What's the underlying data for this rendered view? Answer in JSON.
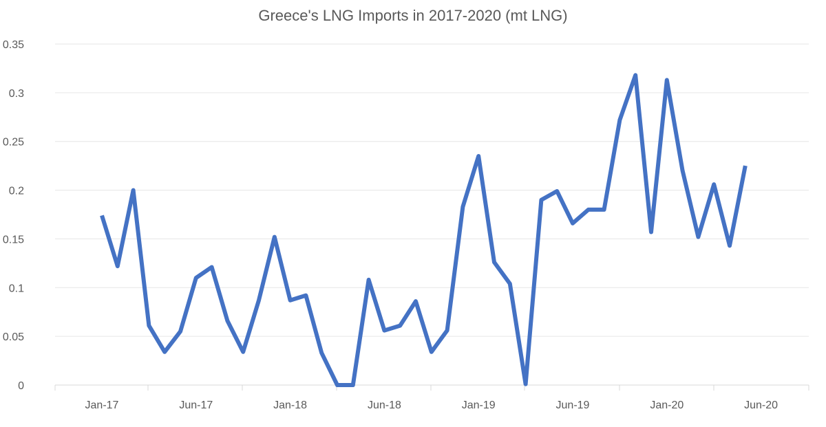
{
  "chart_data": {
    "type": "line",
    "title": "Greece's LNG Imports in 2017-2020 (mt LNG)",
    "xlabel": "",
    "ylabel": "",
    "x_tick_labels": [
      "Jan-17",
      "Jun-17",
      "Jan-18",
      "Jun-18",
      "Jan-19",
      "Jun-19",
      "Jan-20",
      "Jun-20"
    ],
    "y_tick_labels": [
      "0",
      "0.05",
      "0.1",
      "0.15",
      "0.2",
      "0.25",
      "0.3",
      "0.35"
    ],
    "ylim": [
      0,
      0.35
    ],
    "grid": true,
    "legend": "none",
    "color": "#4472c4",
    "x": [
      "Jan-17",
      "Feb-17",
      "Mar-17",
      "Apr-17",
      "May-17",
      "Jun-17",
      "Jul-17",
      "Aug-17",
      "Sep-17",
      "Oct-17",
      "Nov-17",
      "Dec-17",
      "Jan-18",
      "Feb-18",
      "Mar-18",
      "Apr-18",
      "May-18",
      "Jun-18",
      "Jul-18",
      "Aug-18",
      "Sep-18",
      "Oct-18",
      "Nov-18",
      "Dec-18",
      "Jan-19",
      "Feb-19",
      "Mar-19",
      "Apr-19",
      "May-19",
      "Jun-19",
      "Jul-19",
      "Aug-19",
      "Sep-19",
      "Oct-19",
      "Nov-19",
      "Dec-19",
      "Jan-20",
      "Feb-20",
      "Mar-20",
      "Apr-20",
      "May-20",
      "Jun-20"
    ],
    "series": [
      {
        "values": [
          0.174,
          0.122,
          0.2,
          0.061,
          0.034,
          0.055,
          0.11,
          0.121,
          0.066,
          0.034,
          0.087,
          0.152,
          0.087,
          0.092,
          0.033,
          0.0,
          0.0,
          0.108,
          0.056,
          0.061,
          0.086,
          0.034,
          0.056,
          0.183,
          0.235,
          0.126,
          0.104,
          0.001,
          0.19,
          0.199,
          0.166,
          0.18,
          0.18,
          0.272,
          0.318,
          0.157,
          0.313,
          0.22,
          0.152,
          0.206,
          0.143,
          0.225
        ]
      }
    ],
    "x_tick_positions": [
      0,
      6,
      12,
      18,
      24,
      30,
      36,
      42
    ]
  }
}
